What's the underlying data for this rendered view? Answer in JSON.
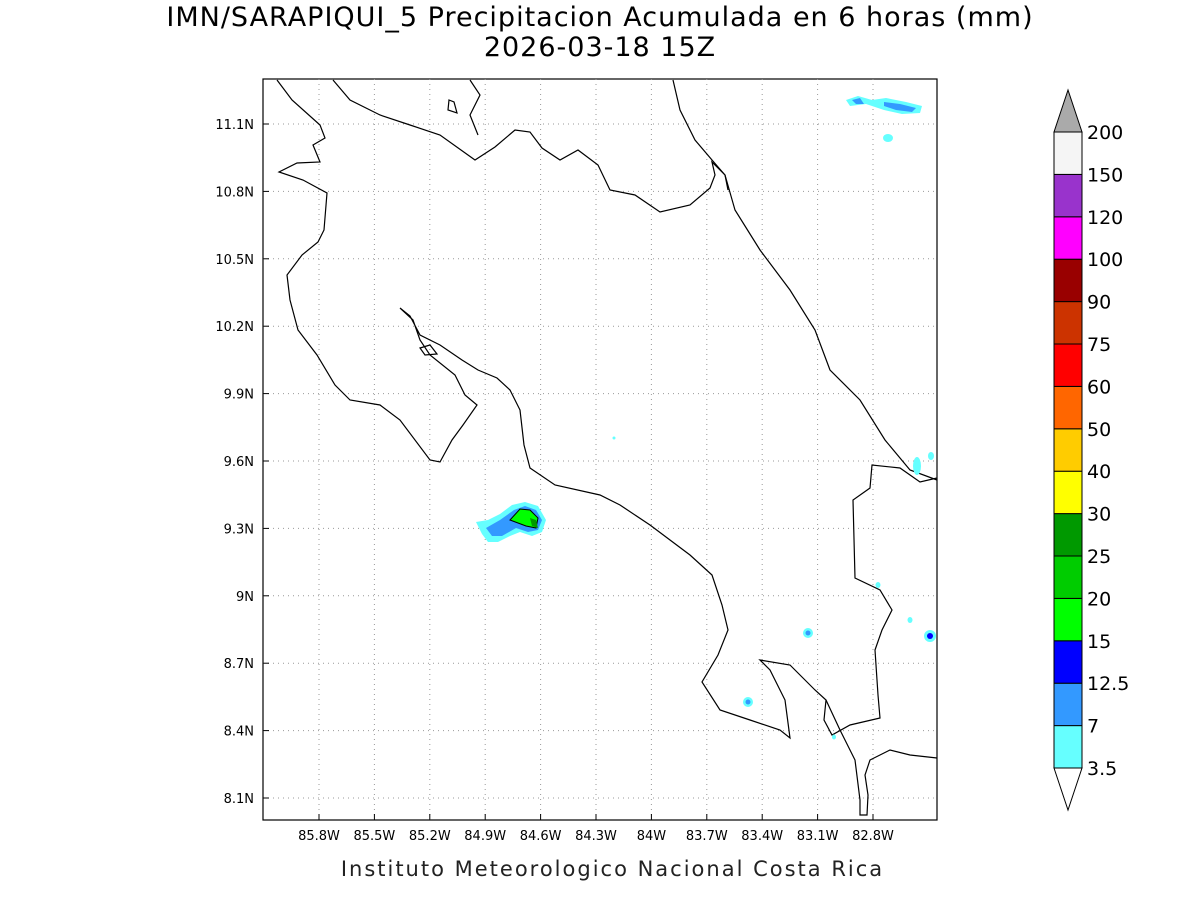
{
  "map": {
    "title_line1": "IMN/SARAPIQUI_5 Precipitacion Acumulada en 6 horas (mm)",
    "title_line2": "2026-03-18 15Z",
    "footer": "Instituto Meteorologico Nacional Costa Rica",
    "lon_ticks": [
      "85.8W",
      "85.5W",
      "85.2W",
      "84.9W",
      "84.6W",
      "84.3W",
      "84W",
      "83.7W",
      "83.4W",
      "83.1W",
      "82.8W"
    ],
    "lat_ticks": [
      "8.1N",
      "8.4N",
      "8.7N",
      "9N",
      "9.3N",
      "9.6N",
      "9.9N",
      "10.2N",
      "10.5N",
      "10.8N",
      "11.1N"
    ],
    "grid": true
  },
  "colorbar": {
    "labels": [
      "3.5",
      "7",
      "12.5",
      "15",
      "20",
      "25",
      "30",
      "40",
      "50",
      "60",
      "75",
      "90",
      "100",
      "120",
      "150",
      "200"
    ],
    "colors": [
      "#66ffff",
      "#3399ff",
      "#0000ff",
      "#00ff00",
      "#00cc00",
      "#009900",
      "#ffff00",
      "#ffcc00",
      "#ff6600",
      "#ff0000",
      "#cc3300",
      "#990000",
      "#ff00ff",
      "#9933cc",
      "#f5f5f5"
    ],
    "over_color": "#aaaaaa",
    "under_color": "#ffffff"
  }
}
